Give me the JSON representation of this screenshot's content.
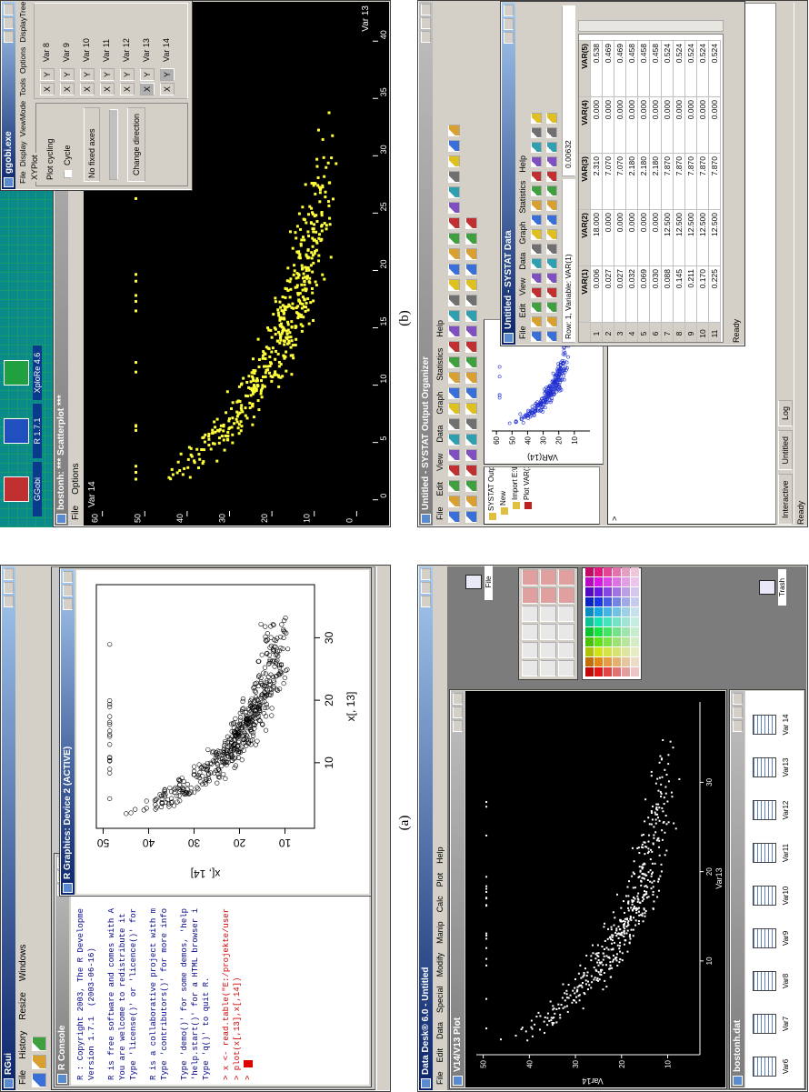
{
  "figure_a": {
    "caption": "(a)",
    "title": "RGui",
    "menu": [
      "File",
      "History",
      "Resize",
      "Windows"
    ],
    "console": {
      "title": "R Console",
      "banner": [
        [
          "R : Copyright 2003, The R Developme",
          "Version 1.7.1  (2003-06-16)"
        ],
        [
          "R is free software and comes with A",
          "You are welcome to redistribute it",
          "Type 'license()' or 'licence()' for"
        ],
        [
          "R is a collaborative project with m",
          "Type 'contributors()' for more info"
        ],
        [
          "Type 'demo()' for some demos, 'help",
          "'help.start()' for a HTML browser i",
          "Type 'q()' to quit R."
        ]
      ],
      "commands": [
        "> x <- read.table(\"E:/projekte/user",
        "> plot(x[,13],x[,14])",
        ">"
      ]
    },
    "graphics": {
      "title": "R Graphics: Device 2 (ACTIVE)",
      "xticks": [
        10,
        20,
        30
      ],
      "yticks": [
        10,
        20,
        30,
        40,
        50
      ],
      "x_label": "x[, 13]",
      "y_label": "x[, 14]"
    }
  },
  "figure_b": {
    "caption": "(b)",
    "desktop_icons": [
      "GGobi",
      "R 1.7.1",
      "XploRe 4.6"
    ],
    "plot_window": {
      "title": "bostonh: *** Scatterplot ***",
      "menu": [
        "File",
        "Options"
      ],
      "y_label": "Var 14",
      "x_label": "Var 13",
      "yticks": [
        0,
        10,
        20,
        30,
        40,
        50,
        60
      ],
      "xticks": [
        0,
        5,
        10,
        15,
        20,
        25,
        30,
        35,
        40
      ]
    },
    "control_window": {
      "title": "ggobi.exe",
      "menu": [
        "File",
        "Display",
        "ViewMode",
        "Tools",
        "Options",
        "DisplayTree",
        "Help"
      ],
      "mode": "XYPlot",
      "cycling": "Plot cycling",
      "cycle": "Cycle",
      "axes": "No fixed axes",
      "button": "Change direction",
      "xy": [
        "X",
        "Y"
      ],
      "variables": [
        "Var 8",
        "Var 9",
        "Var 10",
        "Var 11",
        "Var 12",
        "Var 13",
        "Var 14"
      ]
    }
  },
  "systat": {
    "title": "Untitled - SYSTAT Output Organizer",
    "menu": [
      "File",
      "Edit",
      "View",
      "Data",
      "Graph",
      "Statistics",
      "Help"
    ],
    "tree": [
      "SYSTAT Output",
      "New",
      "Import E:\\PROJE",
      "Plot VAR(14"
    ],
    "graph": {
      "y_label": "VAR(14)",
      "yticks": [
        10,
        20,
        30,
        40,
        50,
        60
      ]
    },
    "data_window": {
      "title": "Untitled - SYSTAT Data",
      "menu": [
        "File",
        "Edit",
        "View",
        "Data",
        "Graph",
        "Statistics",
        "Help"
      ],
      "row_info": "Row: 1, Variable: VAR(1)",
      "cell": "0.00632",
      "columns": [
        "VAR(1)",
        "VAR(2)",
        "VAR(3)",
        "VAR(4)",
        "VAR(5)"
      ],
      "row_numbers": [
        1,
        2,
        3,
        4,
        5,
        6,
        7,
        8,
        9,
        10,
        11
      ],
      "rows": [
        [
          "0.006",
          "18.000",
          "2.310",
          "0.000",
          "0.538"
        ],
        [
          "0.027",
          "0.000",
          "7.070",
          "0.000",
          "0.469"
        ],
        [
          "0.027",
          "0.000",
          "7.070",
          "0.000",
          "0.469"
        ],
        [
          "0.032",
          "0.000",
          "2.180",
          "0.000",
          "0.458"
        ],
        [
          "0.069",
          "0.000",
          "2.180",
          "0.000",
          "0.458"
        ],
        [
          "0.030",
          "0.000",
          "2.180",
          "0.000",
          "0.458"
        ],
        [
          "0.088",
          "12.500",
          "7.870",
          "0.000",
          "0.524"
        ],
        [
          "0.145",
          "12.500",
          "7.870",
          "0.000",
          "0.524"
        ],
        [
          "0.211",
          "12.500",
          "7.870",
          "0.000",
          "0.524"
        ],
        [
          "0.170",
          "12.500",
          "7.870",
          "0.000",
          "0.524"
        ],
        [
          "0.225",
          "12.500",
          "7.870",
          "0.000",
          "0.524"
        ]
      ],
      "status": "Ready"
    },
    "prompt": ">",
    "tabs": [
      "Interactive",
      "Untitled",
      "Log"
    ],
    "status": "Ready"
  },
  "datadesk": {
    "title": "Data Desk® 6.0 - Untitled",
    "menu": [
      "File",
      "Edit",
      "Data",
      "Special",
      "Modify",
      "Manip",
      "Calc",
      "Plot",
      "Help"
    ],
    "plot": {
      "title": "V14/V13 Plot",
      "y_label": "Var14",
      "x_label": "Var13",
      "yticks": [
        10,
        20,
        30,
        40,
        50
      ],
      "xticks": [
        10,
        20,
        30
      ]
    },
    "icons_window": {
      "title": "bostonh.dat",
      "variables": [
        "Var6",
        "Var7",
        "Var8",
        "Var9",
        "Var10",
        "Var11",
        "Var12",
        "Var13",
        "Var 14"
      ]
    },
    "desk_icons": [
      "File",
      "Trash"
    ]
  }
}
